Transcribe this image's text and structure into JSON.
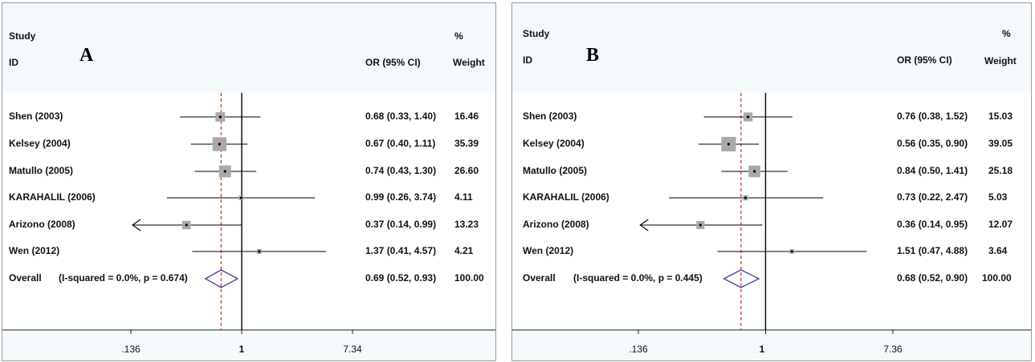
{
  "colors": {
    "ci_line": "#000000",
    "box": "#a9a9a9",
    "null_line": "#000000",
    "overall_line": "#c0392b",
    "diamond": "#4a3d9a",
    "header_bg": "#f4f9fb",
    "border": "#9c9c9c"
  },
  "panels": [
    {
      "letter": "A",
      "header": {
        "study": "Study",
        "id": "ID",
        "or": "OR (95% CI)",
        "pct": "%",
        "weight": "Weight"
      },
      "rows": [
        {
          "label": "Shen (2003)",
          "or_text": "0.68 (0.33, 1.40)",
          "weight_text": "16.46"
        },
        {
          "label": "Kelsey (2004)",
          "or_text": "0.67 (0.40, 1.11)",
          "weight_text": "35.39"
        },
        {
          "label": "Matullo (2005)",
          "or_text": "0.74 (0.43, 1.30)",
          "weight_text": "26.60"
        },
        {
          "label": "KARAHALIL (2006)",
          "or_text": "0.99 (0.26, 3.74)",
          "weight_text": "4.11"
        },
        {
          "label": "Arizono (2008)",
          "or_text": "0.37 (0.14, 0.99)",
          "weight_text": "13.23"
        },
        {
          "label": "Wen (2012)",
          "or_text": "1.37 (0.41, 4.57)",
          "weight_text": "4.21"
        }
      ],
      "overall": {
        "label": "Overall",
        "stats": "(I-squared = 0.0%, p = 0.674)",
        "or_text": "0.69 (0.52, 0.93)",
        "weight_text": "100.00"
      },
      "ticks": [
        {
          "label": ".136",
          "value": 0.136
        },
        {
          "label": "1",
          "value": 1
        },
        {
          "label": "7.34",
          "value": 7.34
        }
      ]
    },
    {
      "letter": "B",
      "header": {
        "study": "Study",
        "id": "ID",
        "or": "OR (95% CI)",
        "pct": "%",
        "weight": "Weight"
      },
      "rows": [
        {
          "label": "Shen (2003)",
          "or_text": "0.76 (0.38, 1.52)",
          "weight_text": "15.03"
        },
        {
          "label": "Kelsey (2004)",
          "or_text": "0.56 (0.35, 0.90)",
          "weight_text": "39.05"
        },
        {
          "label": "Matullo (2005)",
          "or_text": "0.84 (0.50, 1.41)",
          "weight_text": "25.18"
        },
        {
          "label": "KARAHALIL (2006)",
          "or_text": "0.73 (0.22, 2.47)",
          "weight_text": "5.03"
        },
        {
          "label": "Arizono (2008)",
          "or_text": "0.36 (0.14, 0.95)",
          "weight_text": "12.07"
        },
        {
          "label": "Wen (2012)",
          "or_text": "1.51 (0.47, 4.88)",
          "weight_text": "3.64"
        }
      ],
      "overall": {
        "label": "Overall",
        "stats": "(I-squared = 0.0%, p = 0.445)",
        "or_text": "0.68 (0.52, 0.90)",
        "weight_text": "100.00"
      },
      "ticks": [
        {
          "label": ".136",
          "value": 0.136
        },
        {
          "label": "1",
          "value": 1
        },
        {
          "label": "7.36",
          "value": 7.36
        }
      ]
    }
  ],
  "chart_data": [
    {
      "type": "forest",
      "panel": "A",
      "x_scale": "log",
      "xlim": [
        0.136,
        7.34
      ],
      "null_value": 1,
      "series": [
        {
          "study": "Shen (2003)",
          "or": 0.68,
          "lower": 0.33,
          "upper": 1.4,
          "weight": 16.46
        },
        {
          "study": "Kelsey (2004)",
          "or": 0.67,
          "lower": 0.4,
          "upper": 1.11,
          "weight": 35.39
        },
        {
          "study": "Matullo (2005)",
          "or": 0.74,
          "lower": 0.43,
          "upper": 1.3,
          "weight": 26.6
        },
        {
          "study": "KARAHALIL (2006)",
          "or": 0.99,
          "lower": 0.26,
          "upper": 3.74,
          "weight": 4.11
        },
        {
          "study": "Arizono (2008)",
          "or": 0.37,
          "lower": 0.14,
          "upper": 0.99,
          "weight": 13.23,
          "lower_arrow": true
        },
        {
          "study": "Wen (2012)",
          "or": 1.37,
          "lower": 0.41,
          "upper": 4.57,
          "weight": 4.21
        }
      ],
      "overall": {
        "or": 0.69,
        "lower": 0.52,
        "upper": 0.93,
        "i_squared": 0.0,
        "p": 0.674
      }
    },
    {
      "type": "forest",
      "panel": "B",
      "x_scale": "log",
      "xlim": [
        0.136,
        7.36
      ],
      "null_value": 1,
      "series": [
        {
          "study": "Shen (2003)",
          "or": 0.76,
          "lower": 0.38,
          "upper": 1.52,
          "weight": 15.03
        },
        {
          "study": "Kelsey (2004)",
          "or": 0.56,
          "lower": 0.35,
          "upper": 0.9,
          "weight": 39.05
        },
        {
          "study": "Matullo (2005)",
          "or": 0.84,
          "lower": 0.5,
          "upper": 1.41,
          "weight": 25.18
        },
        {
          "study": "KARAHALIL (2006)",
          "or": 0.73,
          "lower": 0.22,
          "upper": 2.47,
          "weight": 5.03
        },
        {
          "study": "Arizono (2008)",
          "or": 0.36,
          "lower": 0.14,
          "upper": 0.95,
          "weight": 12.07,
          "lower_arrow": true
        },
        {
          "study": "Wen (2012)",
          "or": 1.51,
          "lower": 0.47,
          "upper": 4.88,
          "weight": 3.64
        }
      ],
      "overall": {
        "or": 0.68,
        "lower": 0.52,
        "upper": 0.9,
        "i_squared": 0.0,
        "p": 0.445
      }
    }
  ]
}
